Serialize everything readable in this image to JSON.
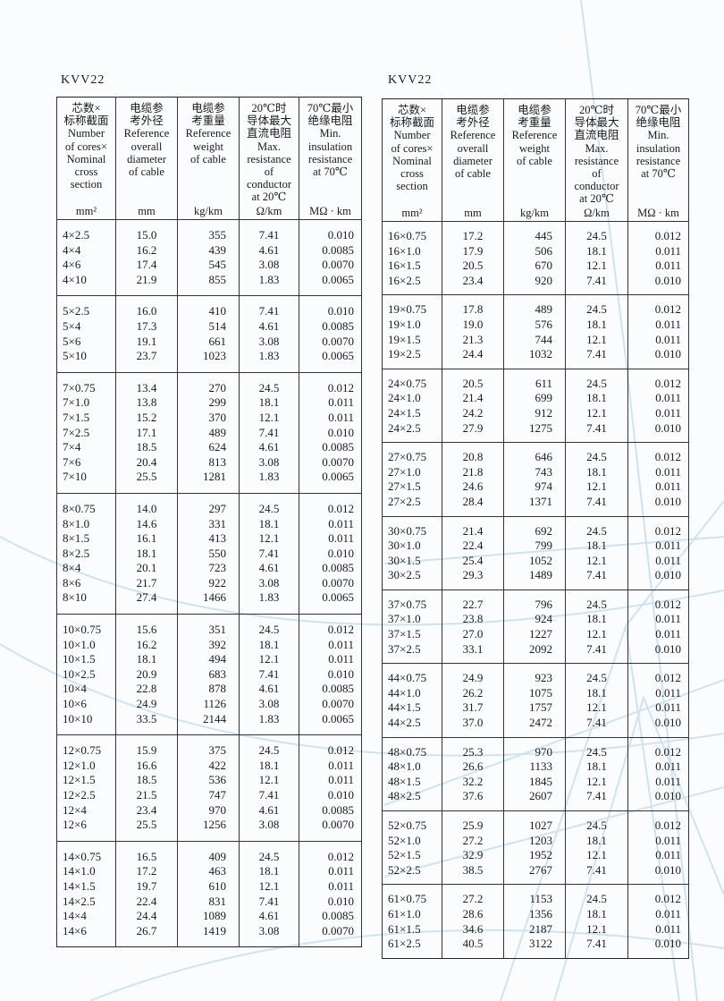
{
  "colors": {
    "border": "#222222",
    "watermark_blue": "#9cc8e6"
  },
  "header": {
    "columns": [
      {
        "label": "芯数×\n标称截面\nNumber\nof cores×\nNominal\ncross\nsection",
        "unit": "mm²"
      },
      {
        "label": "电缆参\n考外径\nReference\noverall\ndiameter\nof cable",
        "unit": "mm"
      },
      {
        "label": "电缆参\n考重量\nReference\nweight\nof cable",
        "unit": "kg/km"
      },
      {
        "label": "20℃时\n导体最大\n直流电阻\nMax.\nresistance\nof\nconductor\nat  20℃",
        "unit": "Ω/km"
      },
      {
        "label": "70℃最小\n绝缘电阻\nMin.\ninsulation\nresistance\nat 70℃",
        "unit": "MΩ · km"
      }
    ]
  },
  "tables": [
    {
      "title": "KVV22",
      "groups": [
        [
          [
            "4×2.5",
            "15.0",
            "355",
            "7.41",
            "0.010"
          ],
          [
            "4×4",
            "16.2",
            "439",
            "4.61",
            "0.0085"
          ],
          [
            "4×6",
            "17.4",
            "545",
            "3.08",
            "0.0070"
          ],
          [
            "4×10",
            "21.9",
            "855",
            "1.83",
            "0.0065"
          ]
        ],
        [
          [
            "5×2.5",
            "16.0",
            "410",
            "7.41",
            "0.010"
          ],
          [
            "5×4",
            "17.3",
            "514",
            "4.61",
            "0.0085"
          ],
          [
            "5×6",
            "19.1",
            "661",
            "3.08",
            "0.0070"
          ],
          [
            "5×10",
            "23.7",
            "1023",
            "1.83",
            "0.0065"
          ]
        ],
        [
          [
            "7×0.75",
            "13.4",
            "270",
            "24.5",
            "0.012"
          ],
          [
            "7×1.0",
            "13.8",
            "299",
            "18.1",
            "0.011"
          ],
          [
            "7×1.5",
            "15.2",
            "370",
            "12.1",
            "0.011"
          ],
          [
            "7×2.5",
            "17.1",
            "489",
            "7.41",
            "0.010"
          ],
          [
            "7×4",
            "18.5",
            "624",
            "4.61",
            "0.0085"
          ],
          [
            "7×6",
            "20.4",
            "813",
            "3.08",
            "0.0070"
          ],
          [
            "7×10",
            "25.5",
            "1281",
            "1.83",
            "0.0065"
          ]
        ],
        [
          [
            "8×0.75",
            "14.0",
            "297",
            "24.5",
            "0.012"
          ],
          [
            "8×1.0",
            "14.6",
            "331",
            "18.1",
            "0.011"
          ],
          [
            "8×1.5",
            "16.1",
            "413",
            "12.1",
            "0.011"
          ],
          [
            "8×2.5",
            "18.1",
            "550",
            "7.41",
            "0.010"
          ],
          [
            "8×4",
            "20.1",
            "723",
            "4.61",
            "0.0085"
          ],
          [
            "8×6",
            "21.7",
            "922",
            "3.08",
            "0.0070"
          ],
          [
            "8×10",
            "27.4",
            "1466",
            "1.83",
            "0.0065"
          ]
        ],
        [
          [
            "10×0.75",
            "15.6",
            "351",
            "24.5",
            "0.012"
          ],
          [
            "10×1.0",
            "16.2",
            "392",
            "18.1",
            "0.011"
          ],
          [
            "10×1.5",
            "18.1",
            "494",
            "12.1",
            "0.011"
          ],
          [
            "10×2.5",
            "20.9",
            "683",
            "7.41",
            "0.010"
          ],
          [
            "10×4",
            "22.8",
            "878",
            "4.61",
            "0.0085"
          ],
          [
            "10×6",
            "24.9",
            "1126",
            "3.08",
            "0.0070"
          ],
          [
            "10×10",
            "33.5",
            "2144",
            "1.83",
            "0.0065"
          ]
        ],
        [
          [
            "12×0.75",
            "15.9",
            "375",
            "24.5",
            "0.012"
          ],
          [
            "12×1.0",
            "16.6",
            "422",
            "18.1",
            "0.011"
          ],
          [
            "12×1.5",
            "18.5",
            "536",
            "12.1",
            "0.011"
          ],
          [
            "12×2.5",
            "21.5",
            "747",
            "7.41",
            "0.010"
          ],
          [
            "12×4",
            "23.4",
            "970",
            "4.61",
            "0.0085"
          ],
          [
            "12×6",
            "25.5",
            "1256",
            "3.08",
            "0.0070"
          ]
        ],
        [
          [
            "14×0.75",
            "16.5",
            "409",
            "24.5",
            "0.012"
          ],
          [
            "14×1.0",
            "17.2",
            "463",
            "18.1",
            "0.011"
          ],
          [
            "14×1.5",
            "19.7",
            "610",
            "12.1",
            "0.011"
          ],
          [
            "14×2.5",
            "22.4",
            "831",
            "7.41",
            "0.010"
          ],
          [
            "14×4",
            "24.4",
            "1089",
            "4.61",
            "0.0085"
          ],
          [
            "14×6",
            "26.7",
            "1419",
            "3.08",
            "0.0070"
          ]
        ]
      ]
    },
    {
      "title": "KVV22",
      "groups": [
        [
          [
            "16×0.75",
            "17.2",
            "445",
            "24.5",
            "0.012"
          ],
          [
            "16×1.0",
            "17.9",
            "506",
            "18.1",
            "0.011"
          ],
          [
            "16×1.5",
            "20.5",
            "670",
            "12.1",
            "0.011"
          ],
          [
            "16×2.5",
            "23.4",
            "920",
            "7.41",
            "0.010"
          ]
        ],
        [
          [
            "19×0.75",
            "17.8",
            "489",
            "24.5",
            "0.012"
          ],
          [
            "19×1.0",
            "19.0",
            "576",
            "18.1",
            "0.011"
          ],
          [
            "19×1.5",
            "21.3",
            "744",
            "12.1",
            "0.011"
          ],
          [
            "19×2.5",
            "24.4",
            "1032",
            "7.41",
            "0.010"
          ]
        ],
        [
          [
            "24×0.75",
            "20.5",
            "611",
            "24.5",
            "0.012"
          ],
          [
            "24×1.0",
            "21.4",
            "699",
            "18.1",
            "0.011"
          ],
          [
            "24×1.5",
            "24.2",
            "912",
            "12.1",
            "0.011"
          ],
          [
            "24×2.5",
            "27.9",
            "1275",
            "7.41",
            "0.010"
          ]
        ],
        [
          [
            "27×0.75",
            "20.8",
            "646",
            "24.5",
            "0.012"
          ],
          [
            "27×1.0",
            "21.8",
            "743",
            "18.1",
            "0.011"
          ],
          [
            "27×1.5",
            "24.6",
            "974",
            "12.1",
            "0.011"
          ],
          [
            "27×2.5",
            "28.4",
            "1371",
            "7.41",
            "0.010"
          ]
        ],
        [
          [
            "30×0.75",
            "21.4",
            "692",
            "24.5",
            "0.012"
          ],
          [
            "30×1.0",
            "22.4",
            "799",
            "18.1",
            "0.011"
          ],
          [
            "30×1.5",
            "25.4",
            "1052",
            "12.1",
            "0.011"
          ],
          [
            "30×2.5",
            "29.3",
            "1489",
            "7.41",
            "0.010"
          ]
        ],
        [
          [
            "37×0.75",
            "22.7",
            "796",
            "24.5",
            "0.012"
          ],
          [
            "37×1.0",
            "23.8",
            "924",
            "18.1",
            "0.011"
          ],
          [
            "37×1.5",
            "27.0",
            "1227",
            "12.1",
            "0.011"
          ],
          [
            "37×2.5",
            "33.1",
            "2092",
            "7.41",
            "0.010"
          ]
        ],
        [
          [
            "44×0.75",
            "24.9",
            "923",
            "24.5",
            "0.012"
          ],
          [
            "44×1.0",
            "26.2",
            "1075",
            "18.1",
            "0.011"
          ],
          [
            "44×1.5",
            "31.7",
            "1757",
            "12.1",
            "0.011"
          ],
          [
            "44×2.5",
            "37.0",
            "2472",
            "7.41",
            "0.010"
          ]
        ],
        [
          [
            "48×0.75",
            "25.3",
            "970",
            "24.5",
            "0.012"
          ],
          [
            "48×1.0",
            "26.6",
            "1133",
            "18.1",
            "0.011"
          ],
          [
            "48×1.5",
            "32.2",
            "1845",
            "12.1",
            "0.011"
          ],
          [
            "48×2.5",
            "37.6",
            "2607",
            "7.41",
            "0.010"
          ]
        ],
        [
          [
            "52×0.75",
            "25.9",
            "1027",
            "24.5",
            "0.012"
          ],
          [
            "52×1.0",
            "27.2",
            "1203",
            "18.1",
            "0.011"
          ],
          [
            "52×1.5",
            "32.9",
            "1952",
            "12.1",
            "0.011"
          ],
          [
            "52×2.5",
            "38.5",
            "2767",
            "7.41",
            "0.010"
          ]
        ],
        [
          [
            "61×0.75",
            "27.2",
            "1153",
            "24.5",
            "0.012"
          ],
          [
            "61×1.0",
            "28.6",
            "1356",
            "18.1",
            "0.011"
          ],
          [
            "61×1.5",
            "34.6",
            "2187",
            "12.1",
            "0.011"
          ],
          [
            "61×2.5",
            "40.5",
            "3122",
            "7.41",
            "0.010"
          ]
        ]
      ]
    }
  ]
}
